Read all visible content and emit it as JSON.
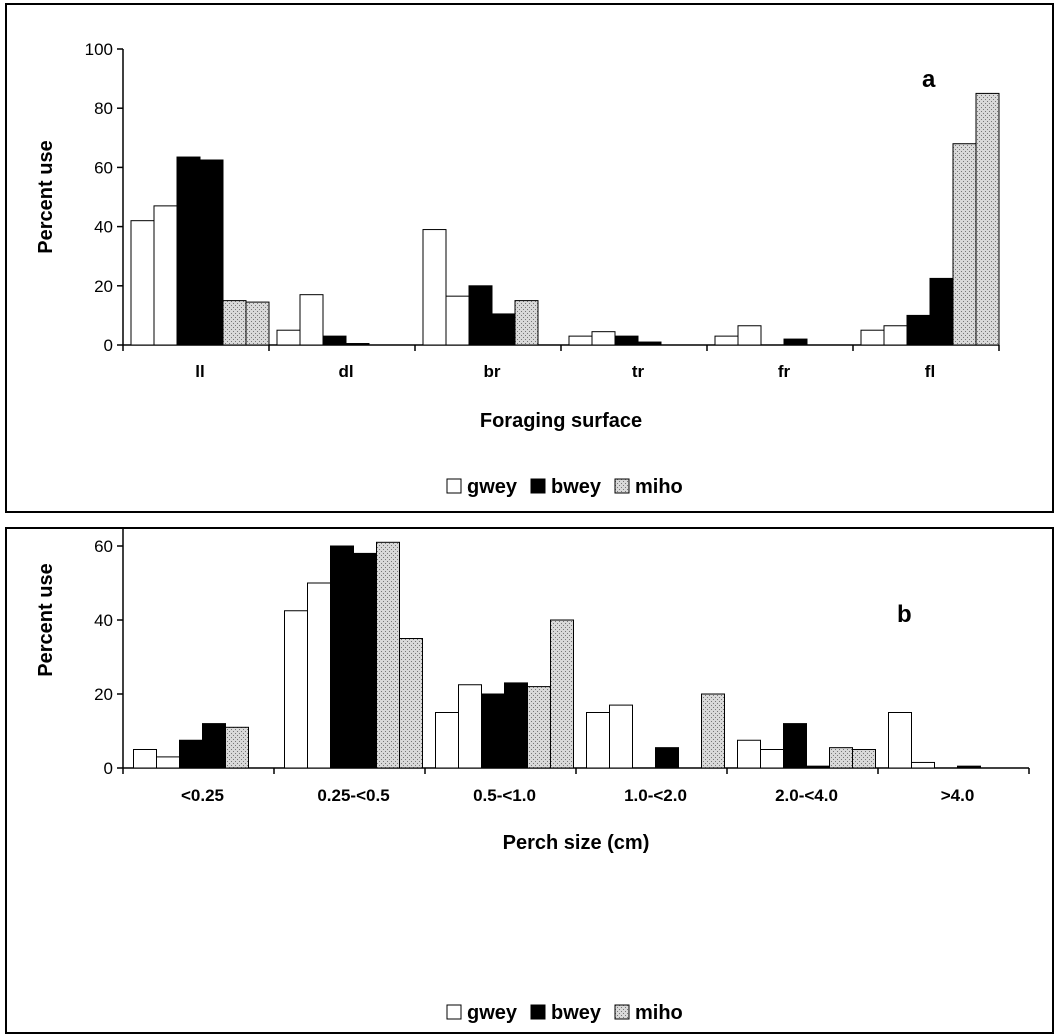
{
  "colors": {
    "gwey": "#ffffff",
    "bwey": "#000000",
    "miho": "#d9d9d9",
    "axis": "#000000"
  },
  "chart_data": [
    {
      "type": "bar",
      "panel_label": "a",
      "xlabel": "Foraging surface",
      "ylabel": "Percent use",
      "ylim": [
        0,
        100
      ],
      "yticks": [
        0,
        20,
        40,
        60,
        80,
        100
      ],
      "categories": [
        "ll",
        "dl",
        "br",
        "tr",
        "fr",
        "fl"
      ],
      "legend": {
        "placement": "bottom",
        "entries": [
          "gwey",
          "bwey",
          "miho"
        ]
      },
      "series": [
        {
          "name": "gwey",
          "style": "gwey",
          "values": [
            42,
            5,
            39,
            3,
            3,
            5
          ]
        },
        {
          "name": "",
          "style": "gwey",
          "values": [
            47,
            17,
            16.5,
            4.5,
            6.5,
            6.5
          ]
        },
        {
          "name": "bwey",
          "style": "bwey",
          "values": [
            63.5,
            3,
            20,
            3,
            0,
            10
          ]
        },
        {
          "name": "",
          "style": "bwey",
          "values": [
            62.5,
            0.5,
            10.5,
            1,
            2,
            22.5
          ]
        },
        {
          "name": "miho",
          "style": "miho",
          "values": [
            15,
            0,
            15,
            0,
            0,
            68
          ]
        },
        {
          "name": "",
          "style": "miho",
          "values": [
            14.5,
            0,
            0,
            0,
            0,
            85
          ]
        }
      ]
    },
    {
      "type": "bar",
      "panel_label": "b",
      "xlabel": "Perch size (cm)",
      "ylabel": "Percent use",
      "ylim": [
        0,
        80
      ],
      "yticks": [
        0,
        20,
        40,
        60,
        80
      ],
      "categories": [
        "<0.25",
        "0.25-<0.5",
        "0.5-<1.0",
        "1.0-<2.0",
        "2.0-<4.0",
        ">4.0"
      ],
      "legend": {
        "placement": "bottom",
        "entries": [
          "gwey",
          "bwey",
          "miho"
        ]
      },
      "series": [
        {
          "name": "gwey",
          "style": "gwey",
          "values": [
            5,
            42.5,
            15,
            15,
            7.5,
            15
          ]
        },
        {
          "name": "",
          "style": "gwey",
          "values": [
            3,
            50,
            22.5,
            17,
            5,
            1.5
          ]
        },
        {
          "name": "bwey",
          "style": "bwey",
          "values": [
            7.5,
            60,
            20,
            0,
            12,
            0
          ]
        },
        {
          "name": "",
          "style": "bwey",
          "values": [
            12,
            58,
            23,
            5.5,
            0.5,
            0.5
          ]
        },
        {
          "name": "miho",
          "style": "miho",
          "values": [
            11,
            61,
            22,
            0,
            5.5,
            0
          ]
        },
        {
          "name": "",
          "style": "miho",
          "values": [
            0,
            35,
            40,
            20,
            5,
            0
          ]
        }
      ]
    }
  ]
}
